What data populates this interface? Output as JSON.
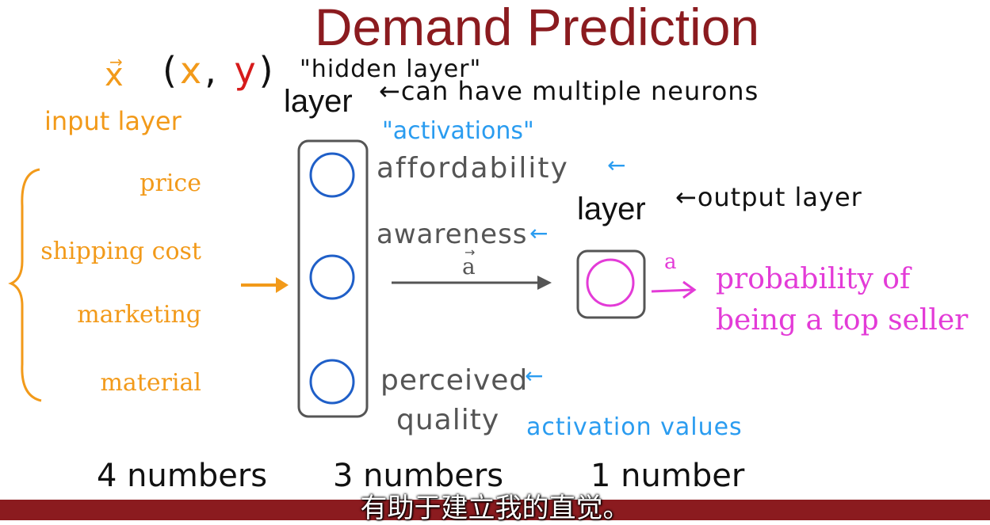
{
  "title": "Demand Prediction",
  "top": {
    "x_vector": "x",
    "pair": "(x, y)",
    "hidden_layer_quote": "\"hidden layer\"",
    "layer_label": "layer",
    "multiple_neurons": "←can have multiple neurons"
  },
  "input": {
    "heading": "input layer",
    "features": [
      "price",
      "shipping cost",
      "marketing",
      "material"
    ]
  },
  "hidden": {
    "activations_quote": "\"activations\"",
    "units": [
      "affordability",
      "awareness",
      "perceived",
      "quality"
    ],
    "left_arrow": "←",
    "vector_label": "a",
    "activation_values": "activation values"
  },
  "output": {
    "layer_label": "layer",
    "output_layer": "←output layer",
    "a_label": "a",
    "prob_line1": "probability of",
    "prob_line2": "being a top seller"
  },
  "counts": [
    "4 numbers",
    "3 numbers",
    "1 number"
  ],
  "subtitle": "有助于建立我的直觉。",
  "colors": {
    "title": "#8b1b1f",
    "input": "#f29a1a",
    "annotation": "#2a9cf0",
    "neuron": "#1f5fc8",
    "output_neuron": "#e33bd7",
    "box": "#555555",
    "bar": "#8b1b1f"
  }
}
